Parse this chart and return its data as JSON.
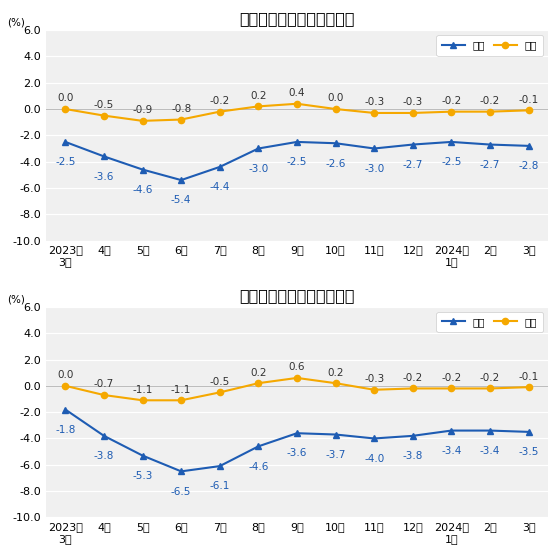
{
  "chart1": {
    "title": "工业生产者出厂价格涨跌幅",
    "yoy": [
      -2.5,
      -3.6,
      -4.6,
      -5.4,
      -4.4,
      -3.0,
      -2.5,
      -2.6,
      -3.0,
      -2.7,
      -2.5,
      -2.7,
      -2.8
    ],
    "mom": [
      0.0,
      -0.5,
      -0.9,
      -0.8,
      -0.2,
      0.2,
      0.4,
      0.0,
      -0.3,
      -0.3,
      -0.2,
      -0.2,
      -0.1
    ],
    "ylim": [
      -10.0,
      6.0
    ],
    "yticks": [
      -10.0,
      -8.0,
      -6.0,
      -4.0,
      -2.0,
      0.0,
      2.0,
      4.0,
      6.0
    ]
  },
  "chart2": {
    "title": "工业生产者购进价格涨跌幅",
    "yoy": [
      -1.8,
      -3.8,
      -5.3,
      -6.5,
      -6.1,
      -4.6,
      -3.6,
      -3.7,
      -4.0,
      -3.8,
      -3.4,
      -3.4,
      -3.5
    ],
    "mom": [
      0.0,
      -0.7,
      -1.1,
      -1.1,
      -0.5,
      0.2,
      0.6,
      0.2,
      -0.3,
      -0.2,
      -0.2,
      -0.2,
      -0.1
    ],
    "ylim": [
      -10.0,
      6.0
    ],
    "yticks": [
      -10.0,
      -8.0,
      -6.0,
      -4.0,
      -2.0,
      0.0,
      2.0,
      4.0,
      6.0
    ]
  },
  "xlabels": [
    "2023年\n3月",
    "4月",
    "5月",
    "6月",
    "7月",
    "8月",
    "9月",
    "10月",
    "11月",
    "12月",
    "2024年\n1月",
    "2月",
    "3月"
  ],
  "yoy_color": "#1e5cb3",
  "mom_color": "#f5a800",
  "ylabel": "(%)",
  "legend_yoy": "同比",
  "legend_mom": "环比",
  "title_fontsize": 11.5,
  "label_fontsize": 7.5,
  "tick_fontsize": 8.0,
  "bg_color": "#ffffff",
  "plot_bg_color": "#f0f0f0"
}
